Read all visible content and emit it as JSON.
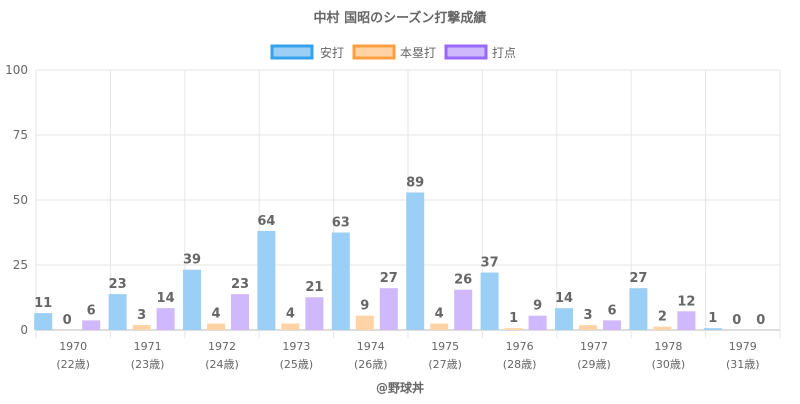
{
  "chart_data": {
    "type": "bar",
    "title": "中村 国昭のシーズン打撃成績",
    "categories": [
      "1970",
      "1971",
      "1972",
      "1973",
      "1974",
      "1975",
      "1976",
      "1977",
      "1978",
      "1979"
    ],
    "sublabels": [
      "(22歳)",
      "(23歳)",
      "(24歳)",
      "(25歳)",
      "(26歳)",
      "(27歳)",
      "(28歳)",
      "(29歳)",
      "(30歳)",
      "(31歳)"
    ],
    "series": [
      {
        "name": "安打",
        "values": [
          11,
          23,
          39,
          64,
          63,
          89,
          37,
          14,
          27,
          1
        ],
        "fill": "#9ccff5",
        "stroke": "#36a2eb"
      },
      {
        "name": "本塁打",
        "values": [
          0,
          3,
          4,
          4,
          9,
          4,
          1,
          3,
          2,
          0
        ],
        "fill": "#ffd3a6",
        "stroke": "#ff9f40"
      },
      {
        "name": "打点",
        "values": [
          6,
          14,
          23,
          21,
          27,
          26,
          9,
          6,
          12,
          0
        ],
        "fill": "#cfb8fc",
        "stroke": "#9966ff"
      }
    ],
    "bar_heights": [
      [
        6.5,
        13.8,
        23.2,
        38.1,
        37.5,
        52.9,
        22.1,
        8.4,
        16.1,
        0.7
      ],
      [
        0,
        1.9,
        2.5,
        2.5,
        5.5,
        2.5,
        0.7,
        1.9,
        1.3,
        0
      ],
      [
        3.7,
        8.4,
        13.8,
        12.6,
        16.1,
        15.5,
        5.5,
        3.7,
        7.2,
        0
      ]
    ],
    "ylim": [
      0,
      100
    ],
    "yticks": [
      0,
      25,
      50,
      75,
      100
    ],
    "legend_position": "top-center",
    "footer": "@野球丼"
  }
}
